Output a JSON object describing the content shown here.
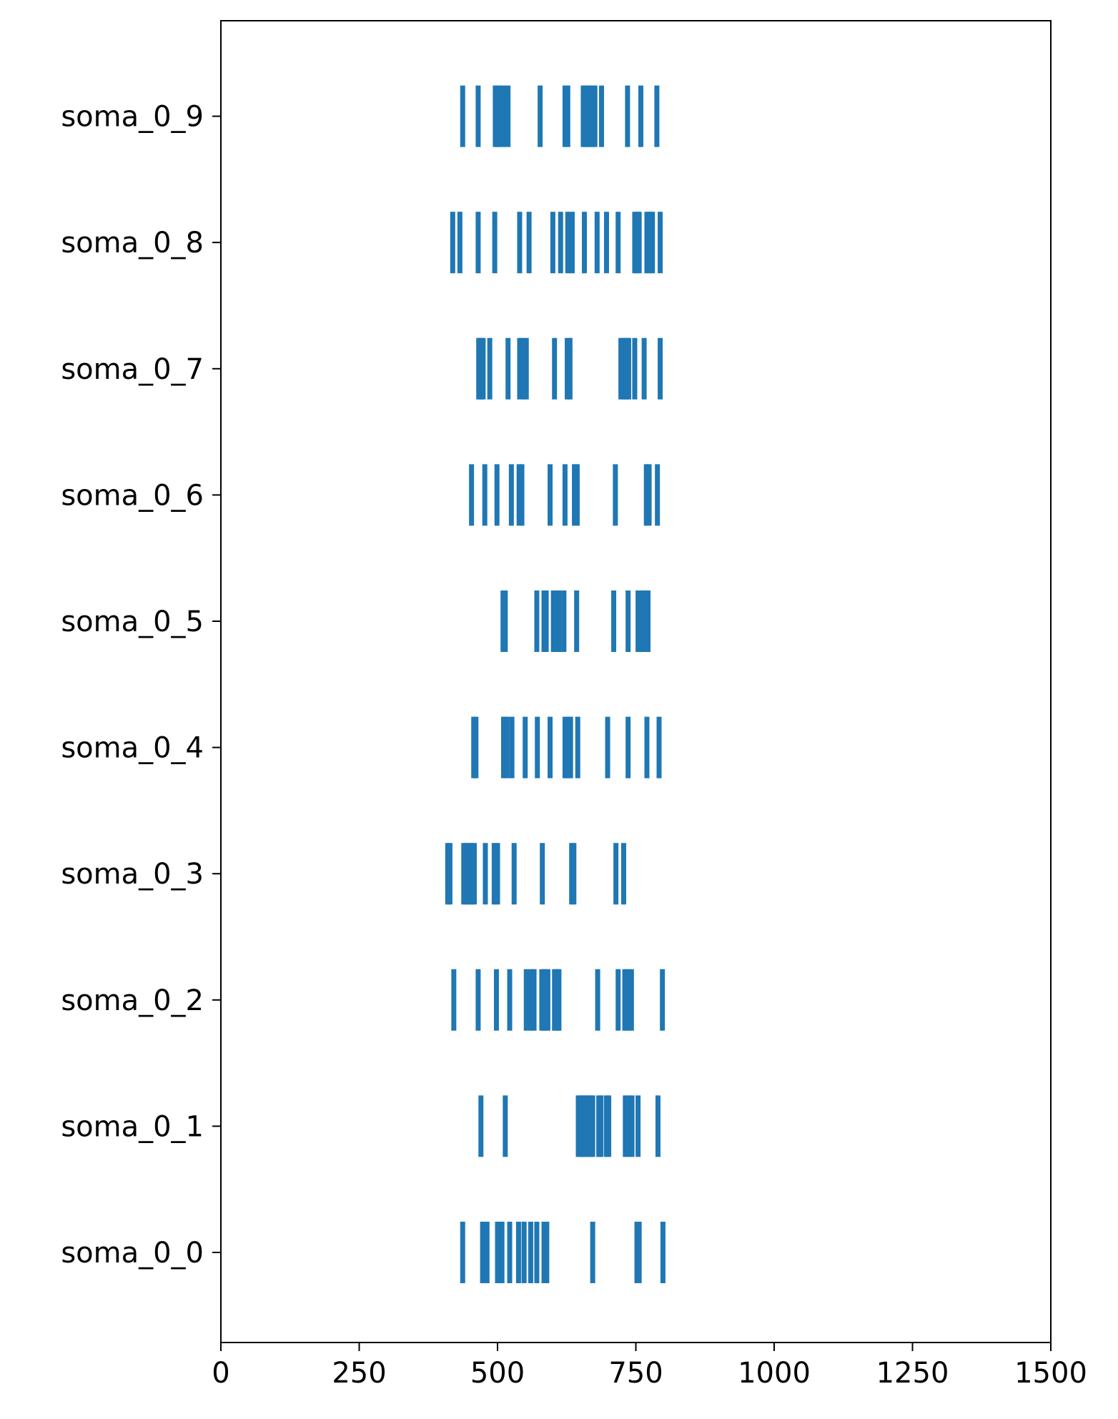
{
  "chart_data": {
    "type": "eventplot",
    "title": "",
    "xlabel": "",
    "ylabel": "",
    "xlim": [
      0,
      1500
    ],
    "xticks": [
      0,
      250,
      500,
      750,
      1000,
      1250,
      1500
    ],
    "xtick_labels": [
      "0",
      "250",
      "500",
      "750",
      "1000",
      "1250",
      "1500"
    ],
    "grid": false,
    "color": "#1f77b4",
    "series": [
      {
        "label": "soma_0_0",
        "events": [
          437,
          473,
          477,
          481,
          500,
          504,
          508,
          522,
          538,
          548,
          560,
          571,
          584,
          589,
          672,
          752,
          756,
          799
        ]
      },
      {
        "label": "soma_0_1",
        "events": [
          470,
          514,
          646,
          650,
          653,
          657,
          660,
          664,
          668,
          672,
          683,
          687,
          697,
          701,
          731,
          737,
          743,
          754,
          790
        ]
      },
      {
        "label": "soma_0_2",
        "events": [
          421,
          465,
          498,
          522,
          552,
          560,
          566,
          580,
          585,
          591,
          603,
          608,
          611,
          681,
          718,
          730,
          735,
          742,
          798
        ]
      },
      {
        "label": "soma_0_3",
        "events": [
          410,
          414,
          439,
          444,
          449,
          453,
          458,
          478,
          494,
          500,
          530,
          581,
          634,
          638,
          714,
          728
        ]
      },
      {
        "label": "soma_0_4",
        "events": [
          457,
          461,
          511,
          517,
          526,
          550,
          572,
          595,
          622,
          627,
          632,
          645,
          699,
          736,
          770,
          792
        ]
      },
      {
        "label": "soma_0_5",
        "events": [
          510,
          514,
          571,
          584,
          588,
          601,
          606,
          611,
          620,
          643,
          710,
          736,
          754,
          759,
          764,
          768,
          772
        ]
      },
      {
        "label": "soma_0_6",
        "events": [
          453,
          477,
          499,
          525,
          539,
          544,
          595,
          622,
          639,
          644,
          713,
          769,
          774,
          789
        ]
      },
      {
        "label": "soma_0_7",
        "events": [
          466,
          470,
          474,
          486,
          519,
          540,
          547,
          552,
          603,
          626,
          631,
          723,
          728,
          733,
          737,
          748,
          765,
          794
        ]
      },
      {
        "label": "soma_0_8",
        "events": [
          419,
          432,
          465,
          495,
          540,
          557,
          600,
          614,
          627,
          635,
          657,
          680,
          697,
          718,
          748,
          752,
          756,
          770,
          775,
          780,
          794
        ]
      },
      {
        "label": "soma_0_9",
        "events": [
          437,
          465,
          496,
          500,
          504,
          511,
          519,
          577,
          622,
          627,
          655,
          659,
          663,
          667,
          671,
          676,
          688,
          735,
          759,
          788
        ]
      }
    ]
  }
}
